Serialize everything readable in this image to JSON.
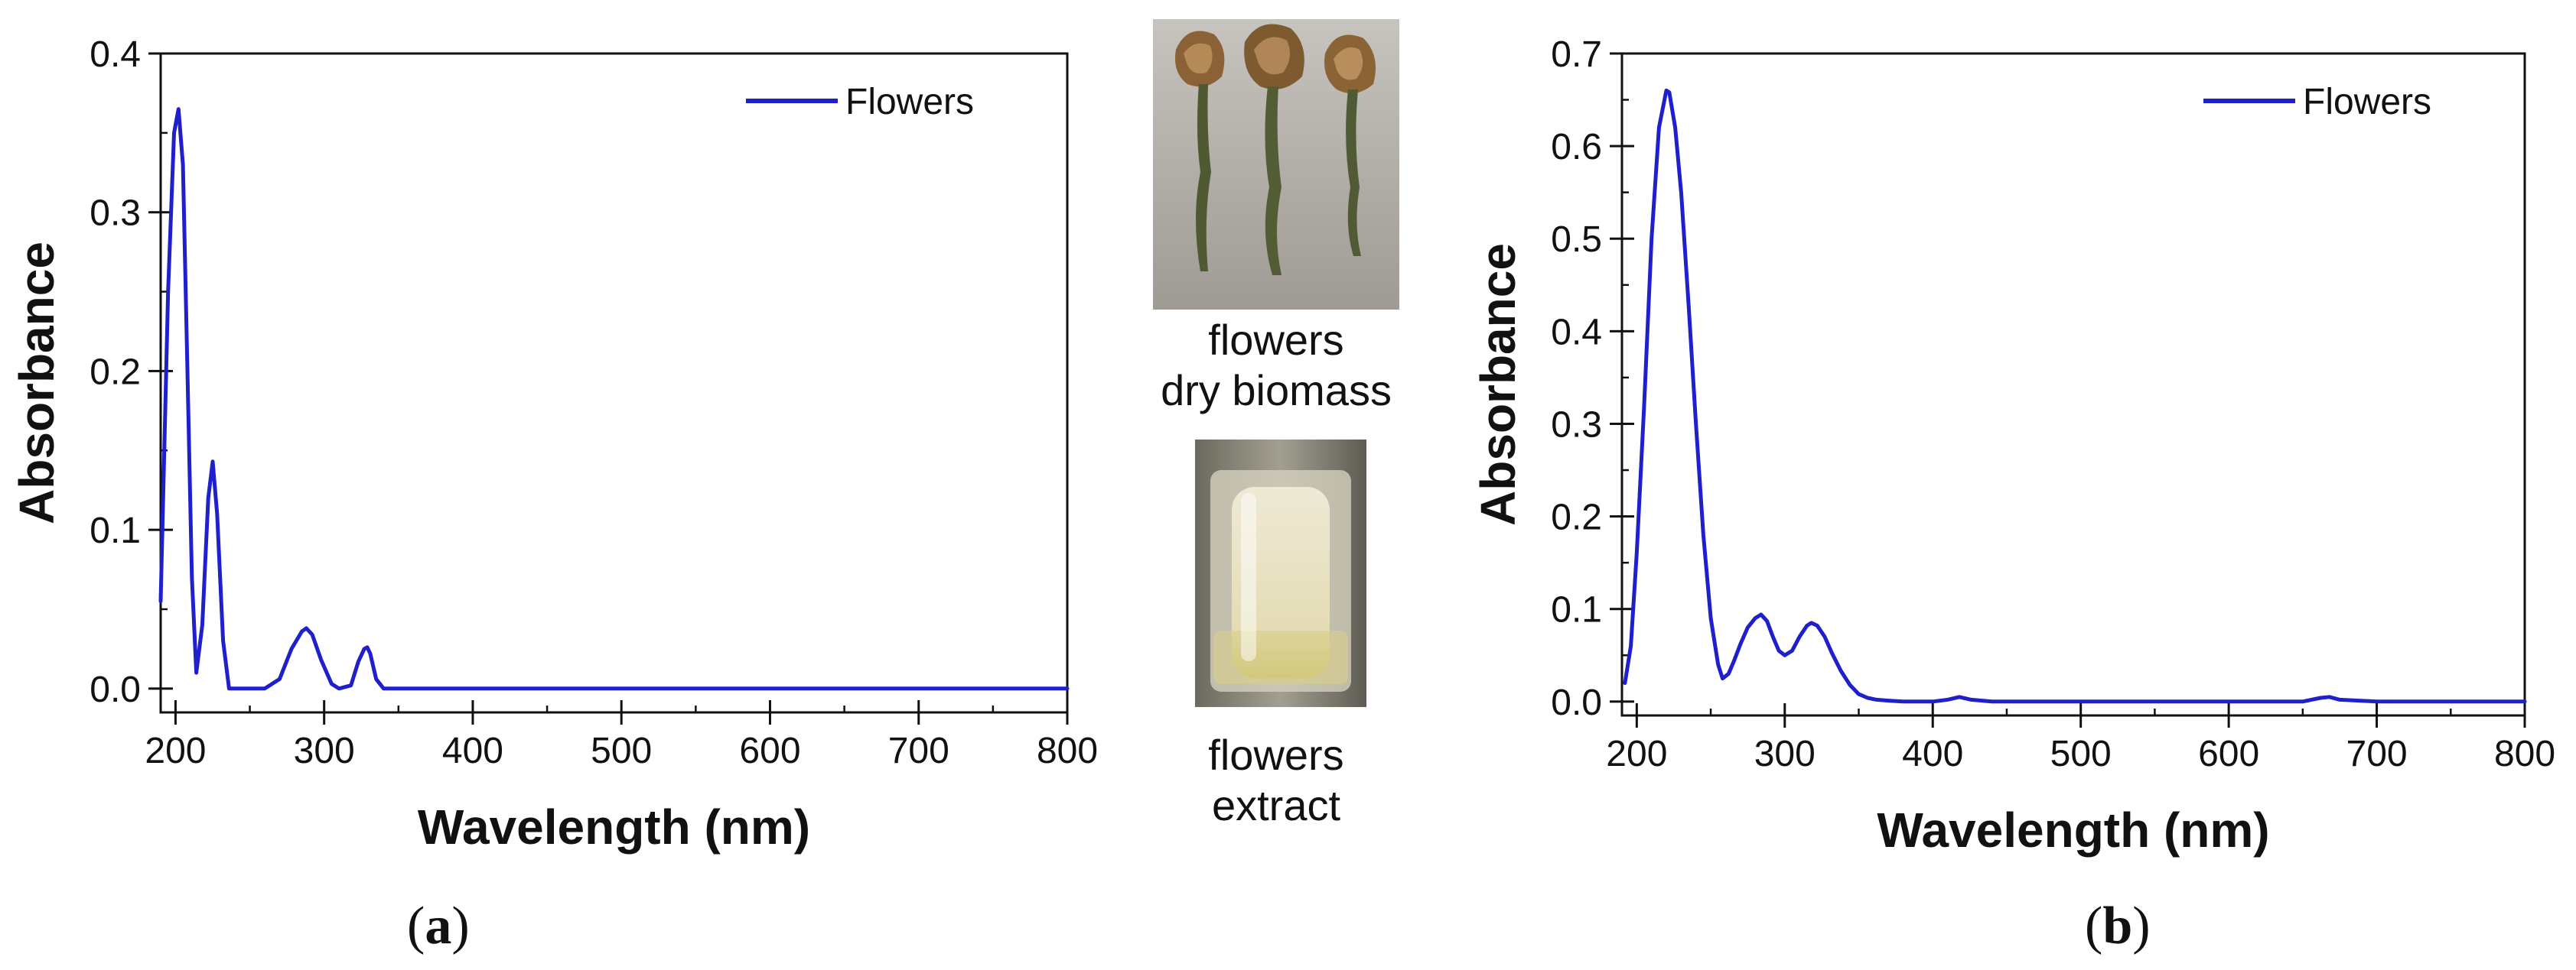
{
  "chart_data": [
    {
      "type": "line",
      "panel_label": "a",
      "xlabel": "Wavelength (nm)",
      "ylabel": "Absorbance",
      "xlim": [
        190,
        800
      ],
      "ylim": [
        -0.015,
        0.4
      ],
      "xticks": [
        "200",
        "300",
        "400",
        "500",
        "600",
        "700",
        "800"
      ],
      "yticks": [
        "0.0",
        "0.1",
        "0.2",
        "0.3",
        "0.4"
      ],
      "grid": false,
      "legend_position": "top-right",
      "color": "#1f1fcc",
      "series": [
        {
          "name": "Flowers",
          "x": [
            190,
            195,
            199,
            202,
            205,
            208,
            211,
            214,
            218,
            222,
            225,
            228,
            232,
            236,
            245,
            260,
            270,
            278,
            285,
            288,
            292,
            298,
            305,
            310,
            318,
            323,
            327,
            329,
            331,
            335,
            340,
            350,
            400,
            500,
            600,
            700,
            800
          ],
          "y": [
            0.055,
            0.25,
            0.35,
            0.365,
            0.33,
            0.2,
            0.07,
            0.01,
            0.04,
            0.12,
            0.143,
            0.11,
            0.03,
            0.0,
            0.0,
            0.0,
            0.006,
            0.025,
            0.036,
            0.038,
            0.034,
            0.018,
            0.003,
            0.0,
            0.002,
            0.017,
            0.025,
            0.026,
            0.022,
            0.006,
            0.0,
            0.0,
            0.0,
            0.0,
            0.0,
            0.0,
            0.0
          ]
        }
      ]
    },
    {
      "type": "line",
      "panel_label": "b",
      "xlabel": "Wavelength (nm)",
      "ylabel": "Absorbance",
      "xlim": [
        190,
        800
      ],
      "ylim": [
        -0.015,
        0.7
      ],
      "xticks": [
        "200",
        "300",
        "400",
        "500",
        "600",
        "700",
        "800"
      ],
      "yticks": [
        "0.0",
        "0.1",
        "0.2",
        "0.3",
        "0.4",
        "0.5",
        "0.6",
        "0.7"
      ],
      "grid": false,
      "legend_position": "top-right",
      "color": "#1f1fcc",
      "series": [
        {
          "name": "Flowers",
          "x": [
            192,
            196,
            200,
            205,
            210,
            215,
            220,
            222,
            226,
            230,
            235,
            240,
            245,
            250,
            255,
            258,
            262,
            266,
            270,
            275,
            280,
            284,
            288,
            292,
            296,
            300,
            305,
            310,
            315,
            318,
            322,
            327,
            332,
            338,
            344,
            350,
            356,
            362,
            370,
            380,
            400,
            410,
            418,
            426,
            440,
            500,
            600,
            650,
            662,
            668,
            675,
            700,
            800
          ],
          "y": [
            0.02,
            0.06,
            0.16,
            0.32,
            0.5,
            0.62,
            0.66,
            0.658,
            0.62,
            0.55,
            0.43,
            0.3,
            0.18,
            0.09,
            0.04,
            0.025,
            0.03,
            0.045,
            0.062,
            0.08,
            0.09,
            0.094,
            0.087,
            0.07,
            0.055,
            0.05,
            0.055,
            0.07,
            0.082,
            0.085,
            0.082,
            0.07,
            0.052,
            0.033,
            0.018,
            0.008,
            0.004,
            0.002,
            0.001,
            0.0,
            0.0,
            0.002,
            0.005,
            0.002,
            0.0,
            0.0,
            0.0,
            0.0,
            0.004,
            0.005,
            0.002,
            0.0,
            0.0
          ]
        }
      ]
    }
  ],
  "images": {
    "top_caption_line1": "flowers",
    "top_caption_line2": "dry biomass",
    "bottom_caption_line1": "flowers",
    "bottom_caption_line2": "extract"
  },
  "panel_labels": {
    "a": "a",
    "b": "b"
  }
}
